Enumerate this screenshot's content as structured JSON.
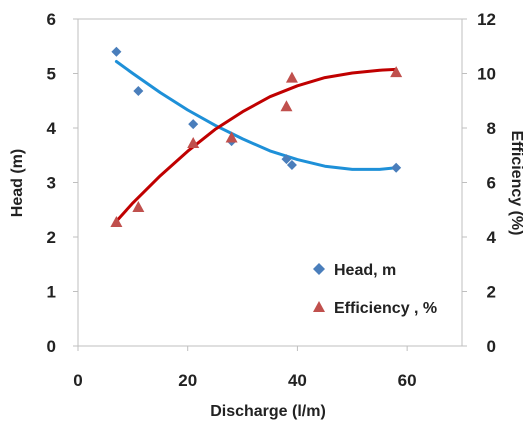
{
  "chart_data": {
    "type": "scatter",
    "title": "",
    "xlabel": "Discharge (l/m)",
    "ylabel_left": "Head (m)",
    "ylabel_right": "Efficiency (%)",
    "xlim": [
      0,
      70
    ],
    "ylim_left": [
      0,
      6
    ],
    "ylim_right": [
      0,
      12
    ],
    "x_ticks": [
      "0",
      "20",
      "40",
      "60"
    ],
    "y_left_ticks": [
      "0",
      "1",
      "2",
      "3",
      "4",
      "5",
      "6"
    ],
    "y_right_ticks": [
      "0",
      "2",
      "4",
      "6",
      "8",
      "10",
      "12"
    ],
    "grid": false,
    "legend_position": "bottom-right",
    "series": [
      {
        "name": "Head, m",
        "axis": "left",
        "marker": "diamond",
        "color": "#4a7ebb",
        "trend_color": "#1e90d8",
        "x": [
          7,
          11,
          21,
          28,
          38,
          39,
          58
        ],
        "y": [
          5.4,
          4.68,
          4.07,
          3.76,
          3.43,
          3.32,
          3.27
        ],
        "trendline": {
          "type": "poly2",
          "x": [
            7,
            10,
            15,
            20,
            25,
            30,
            35,
            40,
            45,
            50,
            55,
            58
          ],
          "y": [
            5.22,
            5.0,
            4.65,
            4.33,
            4.05,
            3.8,
            3.58,
            3.42,
            3.3,
            3.24,
            3.24,
            3.27
          ]
        }
      },
      {
        "name": "Efficiency , %",
        "axis": "right",
        "marker": "triangle",
        "color": "#c0504d",
        "trend_color": "#c00000",
        "x": [
          7,
          11,
          21,
          28,
          38,
          39,
          58
        ],
        "y": [
          4.55,
          5.1,
          7.45,
          7.65,
          8.8,
          9.85,
          10.05
        ],
        "trendline": {
          "type": "poly2",
          "x": [
            7,
            10,
            15,
            20,
            25,
            30,
            35,
            40,
            45,
            50,
            55,
            58
          ],
          "y": [
            4.58,
            5.25,
            6.25,
            7.15,
            7.95,
            8.6,
            9.15,
            9.55,
            9.85,
            10.02,
            10.12,
            10.15
          ]
        }
      }
    ]
  }
}
